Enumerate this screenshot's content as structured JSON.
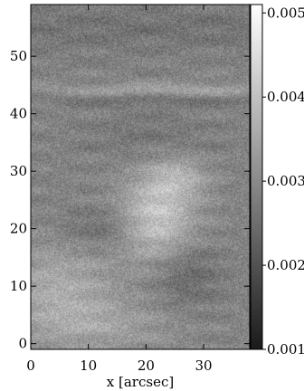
{
  "chart_data": {
    "type": "heatmap",
    "title": "",
    "xlabel": "x [arcsec]",
    "ylabel": "",
    "xlim": [
      0,
      38
    ],
    "ylim": [
      -1,
      59
    ],
    "x_ticks": [
      {
        "value": 0,
        "label": "0"
      },
      {
        "value": 10,
        "label": "10"
      },
      {
        "value": 20,
        "label": "20"
      },
      {
        "value": 30,
        "label": "30"
      }
    ],
    "y_ticks": [
      {
        "value": 0,
        "label": "0"
      },
      {
        "value": 10,
        "label": "10"
      },
      {
        "value": 20,
        "label": "20"
      },
      {
        "value": 30,
        "label": "30"
      },
      {
        "value": 40,
        "label": "40"
      },
      {
        "value": 50,
        "label": "50"
      }
    ],
    "colorbar": {
      "colormap": "gray",
      "range": [
        0.001,
        0.0051
      ],
      "ticks": [
        {
          "value": 0.001,
          "label": "0.001"
        },
        {
          "value": 0.002,
          "label": "0.002"
        },
        {
          "value": 0.003,
          "label": "0.003"
        },
        {
          "value": 0.004,
          "label": "0.004"
        },
        {
          "value": 0.005,
          "label": "0.005"
        }
      ]
    },
    "background_value": 0.0029,
    "features": [
      {
        "kind": "bright-patch",
        "x": 22,
        "y": 22,
        "sx": 4.5,
        "sy": 5.5,
        "amp": 0.0012
      },
      {
        "kind": "bright-patch",
        "x": 26,
        "y": 29,
        "sx": 3.5,
        "sy": 2.5,
        "amp": 0.0006
      },
      {
        "kind": "bright-patch",
        "x": 5,
        "y": 9,
        "sx": 7,
        "sy": 6,
        "amp": 0.0007
      },
      {
        "kind": "bright-patch",
        "x": 14,
        "y": 3,
        "sx": 9,
        "sy": 3,
        "amp": 0.0004
      },
      {
        "kind": "dark-patch",
        "x": 27,
        "y": 12,
        "sx": 4,
        "sy": 4,
        "amp": -0.0005
      },
      {
        "kind": "dark-patch",
        "x": 12,
        "y": 20,
        "sx": 5,
        "sy": 2.5,
        "amp": -0.0004
      },
      {
        "kind": "dark-patch",
        "x": 20,
        "y": 36,
        "sx": 8,
        "sy": 3,
        "amp": -0.00025
      },
      {
        "kind": "bright-streak",
        "x": 24,
        "y": 44,
        "sx": 16,
        "sy": 0.9,
        "amp": 0.0006
      },
      {
        "kind": "dark-streak",
        "x": 22,
        "y": 42.5,
        "sx": 16,
        "sy": 0.8,
        "amp": -0.0004
      },
      {
        "kind": "dark-band",
        "x": 19,
        "y": 55,
        "sx": 30,
        "sy": 3,
        "amp": -0.0003
      }
    ]
  }
}
